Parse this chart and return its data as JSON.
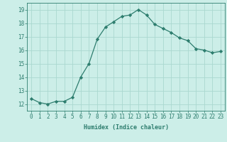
{
  "x": [
    0,
    1,
    2,
    3,
    4,
    5,
    6,
    7,
    8,
    9,
    10,
    11,
    12,
    13,
    14,
    15,
    16,
    17,
    18,
    19,
    20,
    21,
    22,
    23
  ],
  "y": [
    12.4,
    12.1,
    12.0,
    12.2,
    12.2,
    12.5,
    14.0,
    15.0,
    16.8,
    17.7,
    18.1,
    18.5,
    18.6,
    19.0,
    18.6,
    17.9,
    17.6,
    17.3,
    16.9,
    16.7,
    16.1,
    16.0,
    15.8,
    15.9
  ],
  "line_color": "#2d7d6e",
  "marker": "D",
  "marker_size": 2.2,
  "bg_color": "#cceee8",
  "grid_color": "#aad8d0",
  "xlabel": "Humidex (Indice chaleur)",
  "ylabel_ticks": [
    12,
    13,
    14,
    15,
    16,
    17,
    18,
    19
  ],
  "xlim": [
    -0.5,
    23.5
  ],
  "ylim": [
    11.5,
    19.5
  ],
  "tick_fontsize": 5.5,
  "xlabel_fontsize": 6.0
}
